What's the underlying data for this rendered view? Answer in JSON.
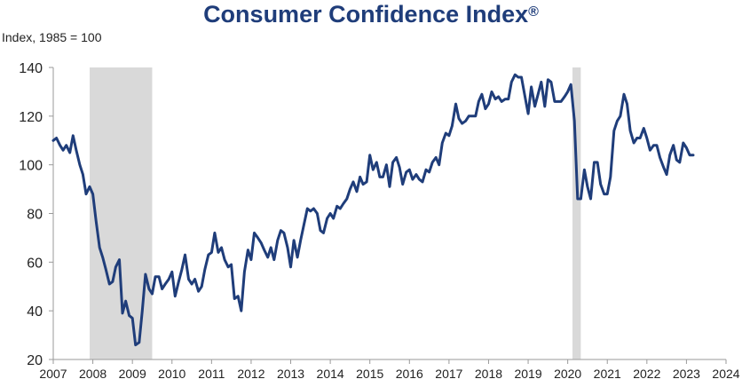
{
  "chart_data": {
    "type": "line",
    "title": "Consumer Confidence Index",
    "title_mark": "®",
    "ylabel": "Index, 1985 = 100",
    "xlabel": "",
    "ylim": [
      20,
      140
    ],
    "yticks": [
      20,
      40,
      60,
      80,
      100,
      120,
      140
    ],
    "xlim": [
      2007,
      2024
    ],
    "xticks": [
      "2007",
      "2008",
      "2009",
      "2010",
      "2011",
      "2012",
      "2013",
      "2014",
      "2015",
      "2016",
      "2017",
      "2018",
      "2019",
      "2020",
      "2021",
      "2022",
      "2023",
      "2024"
    ],
    "grid": false,
    "legend": "none",
    "recessions": [
      {
        "start": 2007.92,
        "end": 2009.5
      },
      {
        "start": 2020.12,
        "end": 2020.33
      }
    ],
    "series": [
      {
        "color": "#1f3d7a",
        "points": [
          [
            2007.0,
            110
          ],
          [
            2007.08,
            111
          ],
          [
            2007.17,
            108
          ],
          [
            2007.25,
            106
          ],
          [
            2007.33,
            108
          ],
          [
            2007.42,
            105
          ],
          [
            2007.5,
            112
          ],
          [
            2007.58,
            106
          ],
          [
            2007.67,
            100
          ],
          [
            2007.75,
            96
          ],
          [
            2007.83,
            88
          ],
          [
            2007.92,
            91
          ],
          [
            2008.0,
            88
          ],
          [
            2008.08,
            77
          ],
          [
            2008.17,
            66
          ],
          [
            2008.25,
            62
          ],
          [
            2008.33,
            57
          ],
          [
            2008.42,
            51
          ],
          [
            2008.5,
            52
          ],
          [
            2008.58,
            58
          ],
          [
            2008.67,
            61
          ],
          [
            2008.75,
            39
          ],
          [
            2008.83,
            44
          ],
          [
            2008.92,
            38
          ],
          [
            2009.0,
            37
          ],
          [
            2009.08,
            26
          ],
          [
            2009.17,
            27
          ],
          [
            2009.25,
            40
          ],
          [
            2009.33,
            55
          ],
          [
            2009.42,
            49
          ],
          [
            2009.5,
            47
          ],
          [
            2009.58,
            54
          ],
          [
            2009.67,
            54
          ],
          [
            2009.75,
            49
          ],
          [
            2009.83,
            51
          ],
          [
            2009.92,
            53
          ],
          [
            2010.0,
            56
          ],
          [
            2010.08,
            46
          ],
          [
            2010.17,
            52
          ],
          [
            2010.25,
            57
          ],
          [
            2010.33,
            63
          ],
          [
            2010.42,
            53
          ],
          [
            2010.5,
            51
          ],
          [
            2010.58,
            53
          ],
          [
            2010.67,
            48
          ],
          [
            2010.75,
            50
          ],
          [
            2010.83,
            57
          ],
          [
            2010.92,
            63
          ],
          [
            2011.0,
            64
          ],
          [
            2011.08,
            72
          ],
          [
            2011.17,
            64
          ],
          [
            2011.25,
            66
          ],
          [
            2011.33,
            61
          ],
          [
            2011.42,
            58
          ],
          [
            2011.5,
            59
          ],
          [
            2011.58,
            45
          ],
          [
            2011.67,
            46
          ],
          [
            2011.75,
            40
          ],
          [
            2011.83,
            56
          ],
          [
            2011.92,
            65
          ],
          [
            2012.0,
            61
          ],
          [
            2012.08,
            72
          ],
          [
            2012.17,
            70
          ],
          [
            2012.25,
            68
          ],
          [
            2012.33,
            65
          ],
          [
            2012.42,
            62
          ],
          [
            2012.5,
            66
          ],
          [
            2012.58,
            61
          ],
          [
            2012.67,
            69
          ],
          [
            2012.75,
            73
          ],
          [
            2012.83,
            72
          ],
          [
            2012.92,
            66
          ],
          [
            2013.0,
            58
          ],
          [
            2013.08,
            69
          ],
          [
            2013.17,
            62
          ],
          [
            2013.25,
            69
          ],
          [
            2013.33,
            75
          ],
          [
            2013.42,
            82
          ],
          [
            2013.5,
            81
          ],
          [
            2013.58,
            82
          ],
          [
            2013.67,
            80
          ],
          [
            2013.75,
            73
          ],
          [
            2013.83,
            72
          ],
          [
            2013.92,
            78
          ],
          [
            2014.0,
            80
          ],
          [
            2014.08,
            78
          ],
          [
            2014.17,
            83
          ],
          [
            2014.25,
            82
          ],
          [
            2014.33,
            84
          ],
          [
            2014.42,
            86
          ],
          [
            2014.5,
            90
          ],
          [
            2014.58,
            93
          ],
          [
            2014.67,
            89
          ],
          [
            2014.75,
            95
          ],
          [
            2014.83,
            92
          ],
          [
            2014.92,
            93
          ],
          [
            2015.0,
            104
          ],
          [
            2015.08,
            98
          ],
          [
            2015.17,
            101
          ],
          [
            2015.25,
            95
          ],
          [
            2015.33,
            95
          ],
          [
            2015.42,
            100
          ],
          [
            2015.5,
            91
          ],
          [
            2015.58,
            101
          ],
          [
            2015.67,
            103
          ],
          [
            2015.75,
            99
          ],
          [
            2015.83,
            92
          ],
          [
            2015.92,
            97
          ],
          [
            2016.0,
            98
          ],
          [
            2016.08,
            94
          ],
          [
            2016.17,
            96
          ],
          [
            2016.25,
            94
          ],
          [
            2016.33,
            93
          ],
          [
            2016.42,
            98
          ],
          [
            2016.5,
            97
          ],
          [
            2016.58,
            101
          ],
          [
            2016.67,
            103
          ],
          [
            2016.75,
            100
          ],
          [
            2016.83,
            109
          ],
          [
            2016.92,
            113
          ],
          [
            2017.0,
            112
          ],
          [
            2017.08,
            116
          ],
          [
            2017.17,
            125
          ],
          [
            2017.25,
            119
          ],
          [
            2017.33,
            117
          ],
          [
            2017.42,
            118
          ],
          [
            2017.5,
            120
          ],
          [
            2017.58,
            120
          ],
          [
            2017.67,
            120
          ],
          [
            2017.75,
            126
          ],
          [
            2017.83,
            129
          ],
          [
            2017.92,
            123
          ],
          [
            2018.0,
            125
          ],
          [
            2018.08,
            130
          ],
          [
            2018.17,
            127
          ],
          [
            2018.25,
            128
          ],
          [
            2018.33,
            126
          ],
          [
            2018.42,
            127
          ],
          [
            2018.5,
            127
          ],
          [
            2018.58,
            134
          ],
          [
            2018.67,
            137
          ],
          [
            2018.75,
            136
          ],
          [
            2018.83,
            136
          ],
          [
            2018.92,
            128
          ],
          [
            2019.0,
            121
          ],
          [
            2019.08,
            132
          ],
          [
            2019.17,
            124
          ],
          [
            2019.25,
            129
          ],
          [
            2019.33,
            134
          ],
          [
            2019.42,
            124
          ],
          [
            2019.5,
            135
          ],
          [
            2019.58,
            134
          ],
          [
            2019.67,
            126
          ],
          [
            2019.75,
            126
          ],
          [
            2019.83,
            126
          ],
          [
            2019.92,
            128
          ],
          [
            2020.0,
            130
          ],
          [
            2020.08,
            133
          ],
          [
            2020.17,
            118
          ],
          [
            2020.25,
            86
          ],
          [
            2020.33,
            86
          ],
          [
            2020.42,
            98
          ],
          [
            2020.5,
            91
          ],
          [
            2020.58,
            86
          ],
          [
            2020.67,
            101
          ],
          [
            2020.75,
            101
          ],
          [
            2020.83,
            92
          ],
          [
            2020.92,
            88
          ],
          [
            2021.0,
            88
          ],
          [
            2021.08,
            95
          ],
          [
            2021.17,
            114
          ],
          [
            2021.25,
            118
          ],
          [
            2021.33,
            120
          ],
          [
            2021.42,
            129
          ],
          [
            2021.5,
            125
          ],
          [
            2021.58,
            114
          ],
          [
            2021.67,
            109
          ],
          [
            2021.75,
            111
          ],
          [
            2021.83,
            111
          ],
          [
            2021.92,
            115
          ],
          [
            2022.0,
            111
          ],
          [
            2022.08,
            106
          ],
          [
            2022.17,
            108
          ],
          [
            2022.25,
            108
          ],
          [
            2022.33,
            103
          ],
          [
            2022.42,
            99
          ],
          [
            2022.5,
            96
          ],
          [
            2022.58,
            104
          ],
          [
            2022.67,
            108
          ],
          [
            2022.75,
            102
          ],
          [
            2022.83,
            101
          ],
          [
            2022.92,
            109
          ],
          [
            2023.0,
            107
          ],
          [
            2023.08,
            104
          ],
          [
            2023.17,
            104
          ]
        ]
      }
    ]
  }
}
